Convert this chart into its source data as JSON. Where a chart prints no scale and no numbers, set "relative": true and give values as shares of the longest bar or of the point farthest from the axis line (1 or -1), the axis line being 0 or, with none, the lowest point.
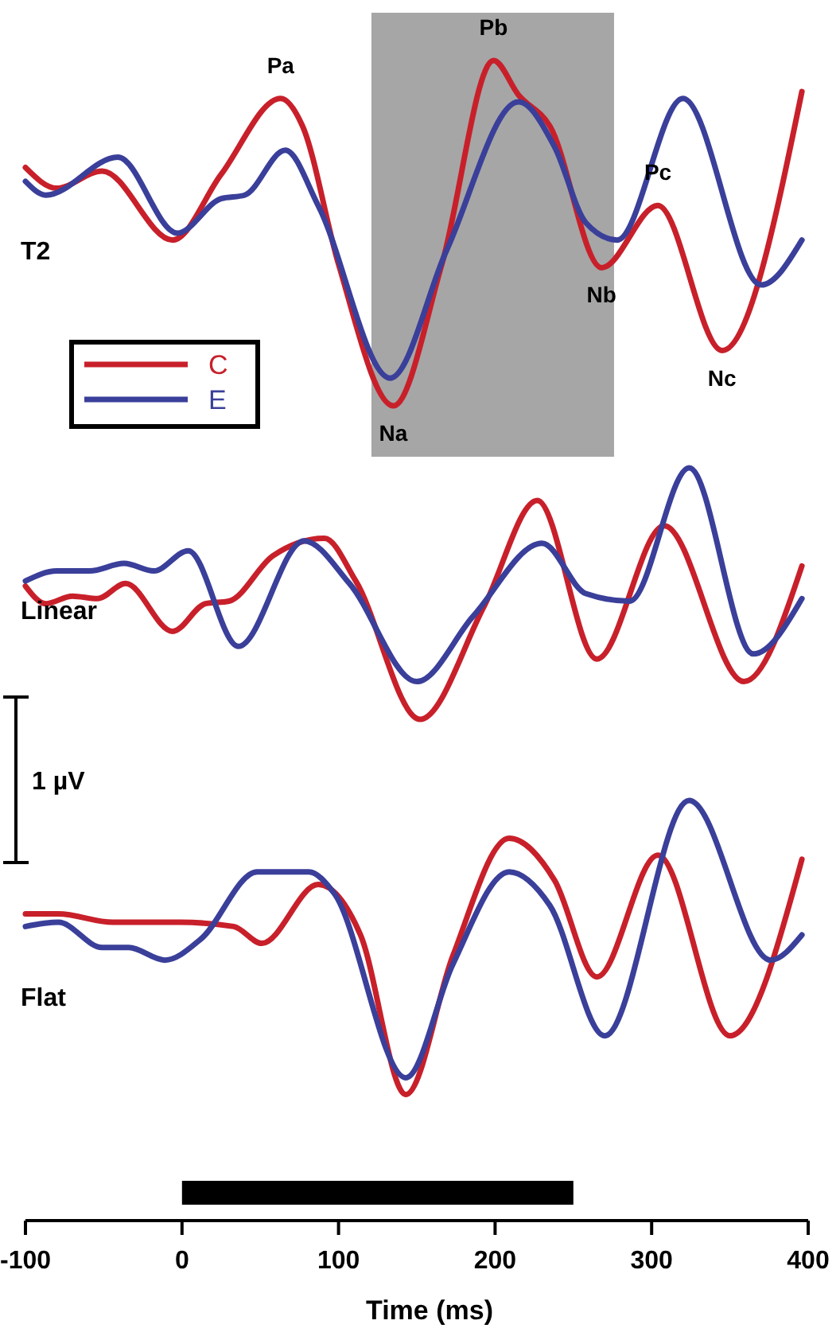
{
  "chart_data": [
    {
      "type": "line",
      "title": "T2",
      "relative": true,
      "xlim": [
        -100,
        400
      ],
      "tick_labels": false,
      "legend": "bottom left",
      "series": [
        {
          "name": "C",
          "color": "#c8202a",
          "x": [
            -100,
            -80,
            -51,
            -6,
            25,
            63,
            77,
            100,
            135,
            166,
            199,
            215,
            235,
            268,
            304,
            345,
            396
          ],
          "values": [
            0.69,
            0.63,
            0.68,
            0.48,
            0.67,
            0.89,
            0.81,
            0.41,
            0,
            0.41,
            1,
            0.9,
            0.81,
            0.4,
            0.58,
            0.16,
            0.91
          ]
        },
        {
          "name": "E",
          "color": "#3a3f9a",
          "x": [
            -100,
            -87,
            -41,
            -3,
            25,
            40,
            66,
            87,
            133,
            169,
            215,
            238,
            258,
            278,
            320,
            370,
            396
          ],
          "values": [
            0.65,
            0.61,
            0.72,
            0.5,
            0.6,
            0.61,
            0.74,
            0.58,
            0.08,
            0.45,
            0.88,
            0.75,
            0.53,
            0.48,
            0.89,
            0.35,
            0.48
          ]
        }
      ],
      "bands": [
        {
          "axis": "x",
          "from": 121,
          "to": 276,
          "color": "#a6a6a6"
        }
      ],
      "annotations": [
        {
          "text": "Pa",
          "x": 63,
          "y": 0.89
        },
        {
          "text": "Na",
          "x": 135,
          "y": 0
        },
        {
          "text": "Pb",
          "x": 199,
          "y": 1
        },
        {
          "text": "Nb",
          "x": 268,
          "y": 0.4
        },
        {
          "text": "Pc",
          "x": 304,
          "y": 0.58
        },
        {
          "text": "Nc",
          "x": 345,
          "y": 0.16
        }
      ]
    },
    {
      "type": "line",
      "title": "Linear",
      "relative": true,
      "xlim": [
        -100,
        400
      ],
      "tick_labels": false,
      "series": [
        {
          "color": "#c8202a",
          "x": [
            -100,
            -87,
            -70,
            -54,
            -36,
            -6,
            15,
            30,
            58,
            91,
            111,
            152,
            193,
            227,
            265,
            308,
            359,
            396
          ],
          "values": [
            0.53,
            0.46,
            0.49,
            0.48,
            0.54,
            0.35,
            0.46,
            0.47,
            0.65,
            0.72,
            0.55,
            0,
            0.45,
            0.87,
            0.24,
            0.77,
            0.15,
            0.61
          ]
        },
        {
          "color": "#3a3f9a",
          "x": [
            -100,
            -80,
            -59,
            -37,
            -18,
            4,
            36,
            78,
            107,
            150,
            186,
            230,
            258,
            286,
            324,
            365,
            396
          ],
          "values": [
            0.55,
            0.59,
            0.59,
            0.62,
            0.59,
            0.67,
            0.29,
            0.71,
            0.54,
            0.15,
            0.41,
            0.7,
            0.5,
            0.47,
            1,
            0.26,
            0.48
          ]
        }
      ],
      "annotations": [
        "1 µV"
      ]
    },
    {
      "type": "line",
      "title": "Flat",
      "relative": true,
      "xlim": [
        -100,
        400
      ],
      "xticks": [
        -100,
        0,
        100,
        200,
        300,
        400
      ],
      "xlabel": "Time (ms)",
      "tick_labels": "x",
      "series": [
        {
          "color": "#c8202a",
          "x": [
            -100,
            -79,
            -44,
            -1,
            33,
            51,
            87,
            114,
            143,
            173,
            209,
            238,
            265,
            304,
            350,
            396
          ],
          "values": [
            0.73,
            0.73,
            0.71,
            0.71,
            0.7,
            0.66,
            0.8,
            0.68,
            0.3,
            0.63,
            0.91,
            0.81,
            0.58,
            0.87,
            0.44,
            0.86
          ]
        },
        {
          "color": "#3a3f9a",
          "x": [
            -100,
            -79,
            -51,
            -34,
            -11,
            12,
            48,
            81,
            97,
            143,
            173,
            209,
            235,
            270,
            324,
            376,
            396
          ],
          "values": [
            0.7,
            0.71,
            0.65,
            0.65,
            0.62,
            0.67,
            0.83,
            0.83,
            0.78,
            0.34,
            0.61,
            0.83,
            0.75,
            0.44,
            1,
            0.62,
            0.68
          ]
        }
      ],
      "bands": [
        {
          "axis": "x",
          "from": 0,
          "to": 250,
          "color": "#000000"
        }
      ]
    }
  ]
}
